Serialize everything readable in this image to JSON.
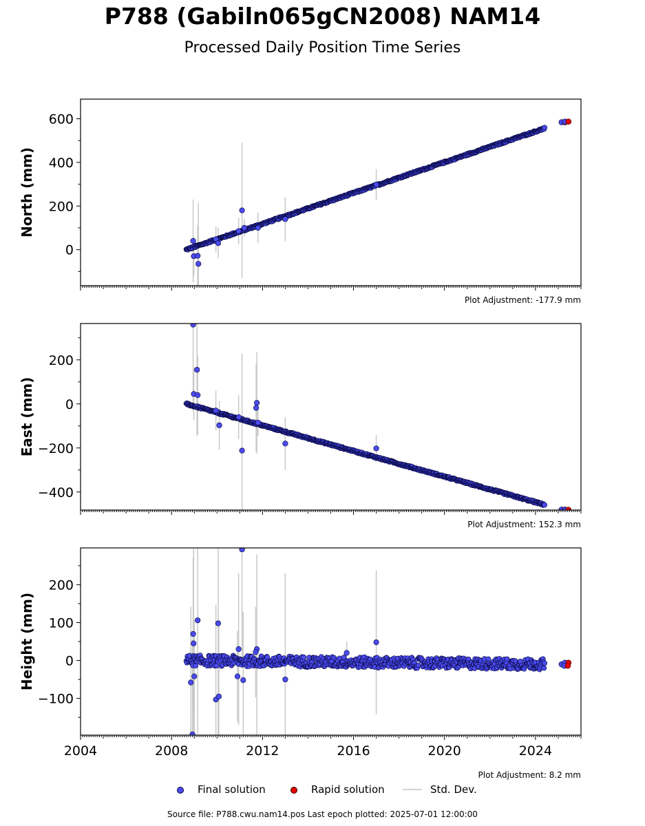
{
  "title": "P788 (Gabiln065gCN2008) NAM14",
  "subtitle": "Processed Daily Position Time Series",
  "source_note": "Source file: P788.cwu.nam14.pos  Last epoch plotted: 2025-07-01 12:00:00",
  "legend": {
    "final": "Final solution",
    "rapid": "Rapid solution",
    "stddev": "Std. Dev."
  },
  "colors": {
    "final": "#4b4bef",
    "final_edge": "#000033",
    "rapid": "#e60000",
    "stddev": "#d3d3d3"
  },
  "chart_data": [
    {
      "type": "scatter",
      "ylabel": "North (mm)",
      "adjustment": "Plot Adjustment: -177.9 mm",
      "xlim": [
        2004.0,
        2026.0
      ],
      "ylim": [
        -165,
        690
      ],
      "yticks": [
        0,
        200,
        400,
        600
      ],
      "trend": {
        "x_start": 2008.65,
        "x_end": 2024.4,
        "y_start": 0,
        "y_end": 556,
        "scatter": 4
      },
      "outliers": [
        {
          "x": 2008.95,
          "y": 40,
          "err": 190
        },
        {
          "x": 2008.98,
          "y": -30,
          "err": 90
        },
        {
          "x": 2009.15,
          "y": -28,
          "err": 140
        },
        {
          "x": 2009.18,
          "y": -65,
          "err": 280
        },
        {
          "x": 2009.95,
          "y": 48,
          "err": 60
        },
        {
          "x": 2010.05,
          "y": 30,
          "err": 70
        },
        {
          "x": 2010.95,
          "y": 85,
          "err": 60
        },
        {
          "x": 2011.1,
          "y": 180,
          "err": 310
        },
        {
          "x": 2011.2,
          "y": 100,
          "err": 40
        },
        {
          "x": 2011.8,
          "y": 100,
          "err": 70
        },
        {
          "x": 2013.0,
          "y": 140,
          "err": 100
        },
        {
          "x": 2017.0,
          "y": 298,
          "err": 70
        }
      ],
      "rapid": [
        {
          "x": 2025.3,
          "y": 584
        },
        {
          "x": 2025.45,
          "y": 587
        }
      ]
    },
    {
      "type": "scatter",
      "ylabel": "East (mm)",
      "adjustment": "Plot Adjustment: 152.3 mm",
      "xlim": [
        2004.0,
        2026.0
      ],
      "ylim": [
        -482,
        365
      ],
      "yticks": [
        -400,
        -200,
        0,
        200
      ],
      "trend": {
        "x_start": 2008.65,
        "x_end": 2024.4,
        "y_start": 0,
        "y_end": -458,
        "scatter": 4
      },
      "outliers": [
        {
          "x": 2008.95,
          "y": 360,
          "err": 390
        },
        {
          "x": 2008.98,
          "y": 45,
          "err": 120
        },
        {
          "x": 2009.12,
          "y": 155,
          "err": 300
        },
        {
          "x": 2009.15,
          "y": 40,
          "err": 180
        },
        {
          "x": 2009.95,
          "y": -30,
          "err": 90
        },
        {
          "x": 2010.1,
          "y": -97,
          "err": 110
        },
        {
          "x": 2010.95,
          "y": -60,
          "err": 100
        },
        {
          "x": 2011.1,
          "y": -212,
          "err": 440
        },
        {
          "x": 2011.75,
          "y": 5,
          "err": 230
        },
        {
          "x": 2011.72,
          "y": -18,
          "err": 200
        },
        {
          "x": 2011.8,
          "y": -85,
          "err": 60
        },
        {
          "x": 2013.0,
          "y": -180,
          "err": 120
        },
        {
          "x": 2017.0,
          "y": -202,
          "err": 60
        }
      ],
      "rapid": [
        {
          "x": 2025.3,
          "y": -480
        },
        {
          "x": 2025.45,
          "y": -481
        }
      ]
    },
    {
      "type": "scatter",
      "ylabel": "Height (mm)",
      "adjustment": "Plot Adjustment: 8.2 mm",
      "xlabel_ticks": [
        "2004",
        "2008",
        "2012",
        "2016",
        "2020",
        "2024"
      ],
      "xticks": [
        2004,
        2008,
        2012,
        2016,
        2020,
        2024
      ],
      "xlim": [
        2004.0,
        2026.0
      ],
      "ylim": [
        -197,
        297
      ],
      "yticks": [
        -100,
        0,
        100,
        200
      ],
      "trend": {
        "x_start": 2008.65,
        "x_end": 2024.4,
        "y_start": 0,
        "y_end": -10,
        "scatter": 14
      },
      "outliers": [
        {
          "x": 2008.85,
          "y": -58,
          "err": 200
        },
        {
          "x": 2008.95,
          "y": 70,
          "err": 200
        },
        {
          "x": 2008.97,
          "y": 45,
          "err": 250
        },
        {
          "x": 2009.0,
          "y": -42,
          "err": 150
        },
        {
          "x": 2009.15,
          "y": 106,
          "err": 300
        },
        {
          "x": 2008.92,
          "y": -195,
          "err": 250
        },
        {
          "x": 2009.95,
          "y": -103,
          "err": 250
        },
        {
          "x": 2010.05,
          "y": 98,
          "err": 300
        },
        {
          "x": 2010.08,
          "y": -95,
          "err": 200
        },
        {
          "x": 2010.95,
          "y": 30,
          "err": 200
        },
        {
          "x": 2010.9,
          "y": -42,
          "err": 120
        },
        {
          "x": 2011.1,
          "y": 293,
          "err": 300
        },
        {
          "x": 2011.15,
          "y": -52,
          "err": 180
        },
        {
          "x": 2011.75,
          "y": 30,
          "err": 250
        },
        {
          "x": 2011.7,
          "y": 22,
          "err": 120
        },
        {
          "x": 2013.0,
          "y": -50,
          "err": 280
        },
        {
          "x": 2017.0,
          "y": 48,
          "err": 190
        },
        {
          "x": 2015.7,
          "y": 20,
          "err": 30
        }
      ],
      "rapid": [
        {
          "x": 2025.3,
          "y": -10
        },
        {
          "x": 2025.45,
          "y": -6
        },
        {
          "x": 2025.42,
          "y": -14
        }
      ]
    }
  ]
}
